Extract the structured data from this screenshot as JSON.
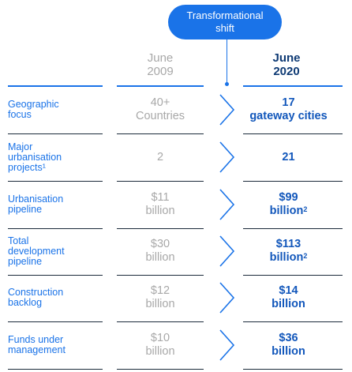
{
  "badge": {
    "line1": "Transformational",
    "line2": "shift"
  },
  "headers": {
    "old": {
      "line1": "June",
      "line2": "2009"
    },
    "new": {
      "line1": "June",
      "line2": "2020"
    }
  },
  "rows": [
    {
      "label": [
        "Geographic",
        "focus"
      ],
      "old": [
        "40+",
        "Countries"
      ],
      "new": [
        "17",
        "gateway cities"
      ],
      "sup": ""
    },
    {
      "label": [
        "Major",
        "urbanisation",
        "projects¹"
      ],
      "old": [
        "2"
      ],
      "new": [
        "21"
      ],
      "sup": ""
    },
    {
      "label": [
        "Urbanisation",
        "pipeline"
      ],
      "old": [
        "$11",
        "billion"
      ],
      "new": [
        "$99",
        "billion"
      ],
      "sup": "2"
    },
    {
      "label": [
        "Total",
        "development",
        "pipeline"
      ],
      "old": [
        "$30",
        "billion"
      ],
      "new": [
        "$113",
        "billion"
      ],
      "sup": "2"
    },
    {
      "label": [
        "Construction",
        "backlog"
      ],
      "old": [
        "$12",
        "billion"
      ],
      "new": [
        "$14",
        "billion"
      ],
      "sup": ""
    },
    {
      "label": [
        "Funds under",
        "management"
      ],
      "old": [
        "$10",
        "billion"
      ],
      "new": [
        "$36",
        "billion"
      ],
      "sup": ""
    }
  ],
  "colors": {
    "accent": "#1a73e8",
    "navy": "#0e3a74",
    "muted": "#a8a8a8"
  }
}
